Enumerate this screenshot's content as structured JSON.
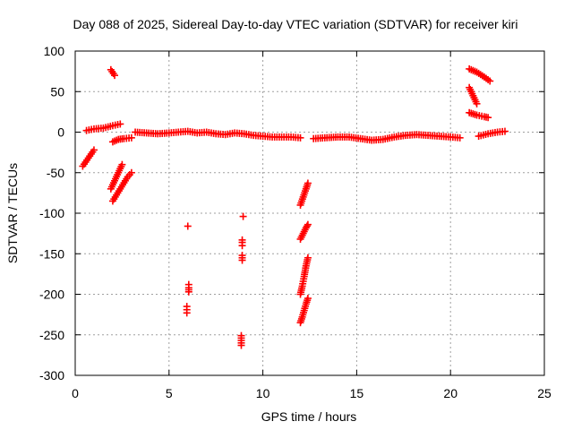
{
  "chart_data": {
    "type": "scatter",
    "title": "Day 088 of 2025, Sidereal Day-to-day VTEC variation (SDTVAR) for receiver kiri",
    "xlabel": "GPS time / hours",
    "ylabel": "SDTVAR / TECUs",
    "xlim": [
      0,
      25
    ],
    "ylim": [
      -300,
      100
    ],
    "xticks": [
      0,
      5,
      10,
      15,
      20,
      25
    ],
    "yticks": [
      -300,
      -250,
      -200,
      -150,
      -100,
      -50,
      0,
      50,
      100
    ],
    "grid": true,
    "marker": "plus",
    "color": "#ff0000",
    "segments": [
      {
        "x": [
          0.4,
          0.7,
          1.0
        ],
        "y": [
          -42,
          -32,
          -22
        ]
      },
      {
        "x": [
          0.6,
          1.0,
          1.5,
          2.0,
          2.4
        ],
        "y": [
          2,
          4,
          5,
          8,
          10
        ]
      },
      {
        "x": [
          1.9,
          2.1
        ],
        "y": [
          77,
          70
        ]
      },
      {
        "x": [
          2.0,
          2.3,
          2.6,
          3.0
        ],
        "y": [
          -12,
          -9,
          -8,
          -7
        ]
      },
      {
        "x": [
          1.9,
          2.2,
          2.5
        ],
        "y": [
          -70,
          -55,
          -40
        ]
      },
      {
        "x": [
          2.0,
          2.4,
          2.8,
          3.0
        ],
        "y": [
          -85,
          -70,
          -55,
          -50
        ]
      },
      {
        "x": [
          3.2,
          3.8,
          4.4,
          5.0,
          5.5,
          6.0,
          6.5,
          7.0,
          7.5,
          8.0,
          8.5,
          9.0,
          9.5,
          10.0,
          10.5,
          11.0,
          11.5,
          12.0
        ],
        "y": [
          0,
          -1,
          -2,
          -1,
          0,
          1,
          -1,
          0,
          -2,
          -3,
          -1,
          -2,
          -4,
          -5,
          -6,
          -6,
          -6,
          -7
        ]
      },
      {
        "x": [
          12.7,
          13.3,
          14.0,
          14.6,
          15.2,
          15.8,
          16.4,
          17.0,
          17.6,
          18.2,
          18.8,
          19.4,
          20.0,
          20.5
        ],
        "y": [
          -8,
          -7,
          -6,
          -6,
          -8,
          -10,
          -9,
          -6,
          -4,
          -3,
          -4,
          -5,
          -6,
          -7
        ]
      },
      {
        "x": [
          21.5,
          22.0,
          22.5,
          22.9
        ],
        "y": [
          -5,
          -2,
          0,
          1
        ]
      },
      {
        "x": [
          6.0
        ],
        "y": [
          -116
        ]
      },
      {
        "x": [
          6.05,
          6.05,
          6.05
        ],
        "y": [
          -188,
          -192,
          -197
        ]
      },
      {
        "x": [
          5.95,
          5.95,
          5.95
        ],
        "y": [
          -215,
          -219,
          -223
        ]
      },
      {
        "x": [
          8.95
        ],
        "y": [
          -104
        ]
      },
      {
        "x": [
          8.9,
          8.9,
          8.9
        ],
        "y": [
          -133,
          -136,
          -140
        ]
      },
      {
        "x": [
          8.9,
          8.9,
          8.9
        ],
        "y": [
          -152,
          -155,
          -158
        ]
      },
      {
        "x": [
          8.85,
          8.85,
          8.85,
          8.85,
          8.85
        ],
        "y": [
          -251,
          -254,
          -257,
          -260,
          -263
        ]
      },
      {
        "x": [
          12.0,
          12.15,
          12.3,
          12.4
        ],
        "y": [
          -90,
          -80,
          -70,
          -63
        ]
      },
      {
        "x": [
          12.0,
          12.15,
          12.3,
          12.4
        ],
        "y": [
          -132,
          -125,
          -118,
          -114
        ]
      },
      {
        "x": [
          12.0,
          12.1,
          12.2,
          12.3,
          12.4
        ],
        "y": [
          -200,
          -190,
          -178,
          -165,
          -155
        ]
      },
      {
        "x": [
          12.0,
          12.1,
          12.2,
          12.3,
          12.4
        ],
        "y": [
          -235,
          -228,
          -220,
          -212,
          -205
        ]
      },
      {
        "x": [
          21.0,
          21.4,
          21.8,
          22.1
        ],
        "y": [
          78,
          74,
          68,
          63
        ]
      },
      {
        "x": [
          21.0,
          21.2,
          21.4
        ],
        "y": [
          55,
          45,
          35
        ]
      },
      {
        "x": [
          21.0,
          21.4,
          21.8,
          22.0
        ],
        "y": [
          24,
          21,
          19,
          18
        ]
      }
    ]
  }
}
